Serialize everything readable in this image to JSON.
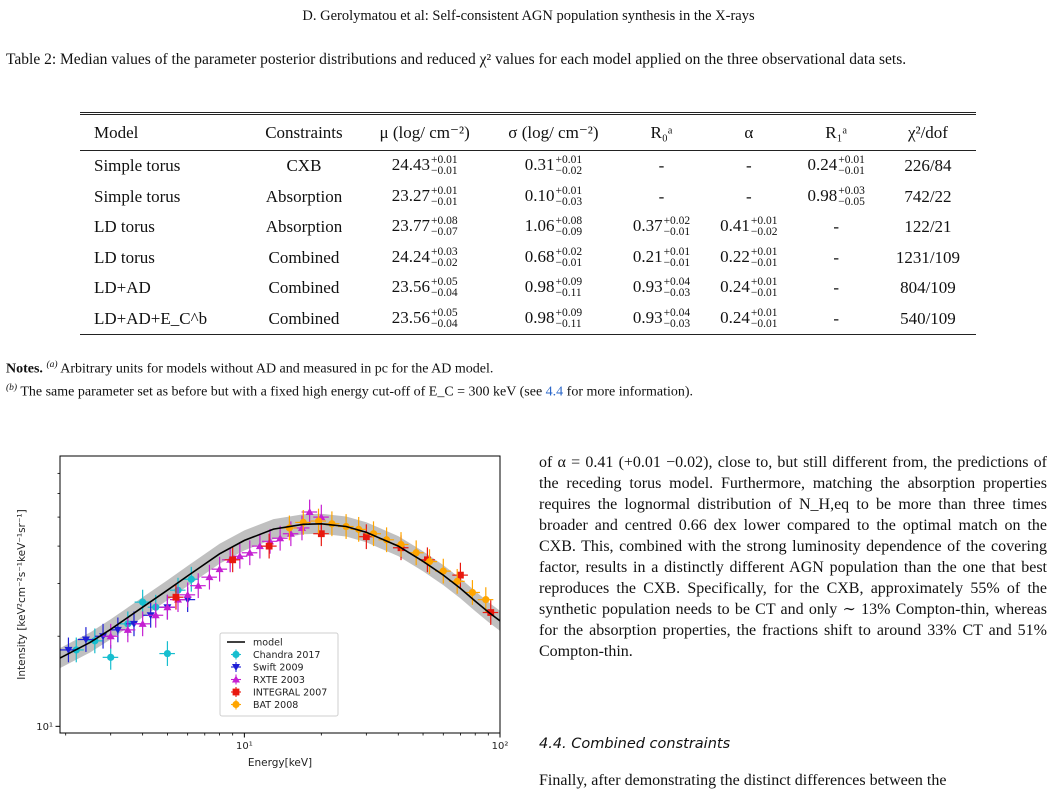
{
  "header": {
    "running_title": "D. Gerolymatou et al: Self-consistent AGN population synthesis in the X-rays"
  },
  "table": {
    "caption": "Table 2: Median values of the parameter posterior distributions and reduced χ² values for each model applied on the three observational data sets.",
    "columns": [
      "Model",
      "Constraints",
      "μ (log/ cm⁻²)",
      "σ (log/ cm⁻²)",
      "R₀ᵃ",
      "α",
      "R₁ᵃ",
      "χ²/dof"
    ],
    "rows": [
      {
        "model": "Simple torus",
        "constraints": "CXB",
        "mu": {
          "v": "24.43",
          "up": "+0.01",
          "lo": "−0.01"
        },
        "sigma": {
          "v": "0.31",
          "up": "+0.01",
          "lo": "−0.02"
        },
        "r0": {
          "v": "-",
          "up": "",
          "lo": ""
        },
        "alpha": {
          "v": "-",
          "up": "",
          "lo": ""
        },
        "r1": {
          "v": "0.24",
          "up": "+0.01",
          "lo": "−0.01"
        },
        "chi2": "226/84"
      },
      {
        "model": "Simple torus",
        "constraints": "Absorption",
        "mu": {
          "v": "23.27",
          "up": "+0.01",
          "lo": "−0.01"
        },
        "sigma": {
          "v": "0.10",
          "up": "+0.01",
          "lo": "−0.03"
        },
        "r0": {
          "v": "-",
          "up": "",
          "lo": ""
        },
        "alpha": {
          "v": "-",
          "up": "",
          "lo": ""
        },
        "r1": {
          "v": "0.98",
          "up": "+0.03",
          "lo": "−0.05"
        },
        "chi2": "742/22"
      },
      {
        "model": "LD torus",
        "constraints": "Absorption",
        "mu": {
          "v": "23.77",
          "up": "+0.08",
          "lo": "−0.07"
        },
        "sigma": {
          "v": "1.06",
          "up": "+0.08",
          "lo": "−0.09"
        },
        "r0": {
          "v": "0.37",
          "up": "+0.02",
          "lo": "−0.01"
        },
        "alpha": {
          "v": "0.41",
          "up": "+0.01",
          "lo": "−0.02"
        },
        "r1": {
          "v": "-",
          "up": "",
          "lo": ""
        },
        "chi2": "122/21"
      },
      {
        "model": "LD torus",
        "constraints": "Combined",
        "mu": {
          "v": "24.24",
          "up": "+0.03",
          "lo": "−0.02"
        },
        "sigma": {
          "v": "0.68",
          "up": "+0.02",
          "lo": "−0.01"
        },
        "r0": {
          "v": "0.21",
          "up": "+0.01",
          "lo": "−0.01"
        },
        "alpha": {
          "v": "0.22",
          "up": "+0.01",
          "lo": "−0.01"
        },
        "r1": {
          "v": "-",
          "up": "",
          "lo": ""
        },
        "chi2": "1231/109"
      },
      {
        "model": "LD+AD",
        "constraints": "Combined",
        "mu": {
          "v": "23.56",
          "up": "+0.05",
          "lo": "−0.04"
        },
        "sigma": {
          "v": "0.98",
          "up": "+0.09",
          "lo": "−0.11"
        },
        "r0": {
          "v": "0.93",
          "up": "+0.04",
          "lo": "−0.03"
        },
        "alpha": {
          "v": "0.24",
          "up": "+0.01",
          "lo": "−0.01"
        },
        "r1": {
          "v": "-",
          "up": "",
          "lo": ""
        },
        "chi2": "804/109"
      },
      {
        "model": "LD+AD+E_C^b",
        "constraints": "Combined",
        "mu": {
          "v": "23.56",
          "up": "+0.05",
          "lo": "−0.04"
        },
        "sigma": {
          "v": "0.98",
          "up": "+0.09",
          "lo": "−0.11"
        },
        "r0": {
          "v": "0.93",
          "up": "+0.04",
          "lo": "−0.03"
        },
        "alpha": {
          "v": "0.24",
          "up": "+0.01",
          "lo": "−0.01"
        },
        "r1": {
          "v": "-",
          "up": "",
          "lo": ""
        },
        "chi2": "540/109"
      }
    ]
  },
  "notes": {
    "label": "Notes.",
    "a_mark": "(a)",
    "a_text": "Arbitrary units for models without AD and measured in pc for the AD model.",
    "b_mark": "(b)",
    "b_text_1": "The same parameter set as before but with a fixed high energy cut-off of E_C = 300 keV (see",
    "b_link": "4.4",
    "b_text_2": "for more information)."
  },
  "body": {
    "paragraph": "of α = 0.41 (+0.01 −0.02), close to, but still different from, the predictions of the receding torus model. Furthermore, matching the absorption properties requires the lognormal distribution of N_H,eq to be more than three times broader and centred 0.66 dex lower compared to the optimal match on the CXB. This, combined with the strong luminosity dependence of the covering factor, results in a distinctly different AGN population than the one that best reproduces the CXB. Specifically, for the CXB, approximately 55% of the synthetic population needs to be CT and only ∼ 13% Compton-thin, whereas for the absorption properties, the fractions shift to around 33% CT and 51% Compton-thin.",
    "section_title": "4.4. Combined constraints",
    "paragraph_2": "Finally, after demonstrating the distinct differences between the"
  },
  "chart_data": {
    "type": "scatter",
    "title": "",
    "xlabel": "Energy[keV]",
    "ylabel": "Intensity [keV²cm⁻²s⁻¹keV⁻¹sr⁻¹]",
    "xscale": "log",
    "yscale": "log",
    "xlim": [
      1.9,
      100
    ],
    "ylim": [
      9.5,
      80
    ],
    "x_ticks": [
      {
        "value": 10,
        "label": "10¹"
      },
      {
        "value": 100,
        "label": "10²"
      }
    ],
    "y_ticks": [
      {
        "value": 10,
        "label": "10¹"
      }
    ],
    "legend_position": "lower center",
    "model": {
      "name": "model",
      "color": "#000000",
      "x": [
        1.9,
        2.5,
        3,
        4,
        5,
        6,
        8,
        10,
        13,
        17,
        20,
        25,
        30,
        40,
        50,
        60,
        70,
        80,
        90,
        100
      ],
      "y": [
        16.9,
        19.1,
        21.1,
        25.0,
        28.5,
        31.8,
        37.7,
        41.8,
        45.6,
        47.3,
        47.5,
        46.5,
        44.5,
        40.0,
        35.6,
        32.0,
        28.9,
        26.2,
        24.1,
        22.5
      ]
    },
    "series": [
      {
        "name": "Chandra 2017",
        "color": "#17becf",
        "marker": "circle",
        "x": [
          2.2,
          2.6,
          3.0,
          3.5,
          4.0,
          4.5,
          5.0,
          5.5,
          6.2
        ],
        "y": [
          18.0,
          19.3,
          17.0,
          22.0,
          26.0,
          25.0,
          17.5,
          28.5,
          31.0
        ]
      },
      {
        "name": "Swift 2009",
        "color": "#1f1fd6",
        "marker": "triangle-down",
        "x": [
          2.05,
          2.4,
          2.8,
          3.2,
          3.7,
          4.3,
          5.0,
          6.0
        ],
        "y": [
          18.0,
          19.5,
          20.0,
          21.0,
          22.0,
          23.5,
          25.0,
          26.5
        ]
      },
      {
        "name": "RXTE 2003",
        "color": "#c51fd2",
        "marker": "triangle-up",
        "x": [
          3.0,
          3.5,
          4.0,
          4.5,
          5.0,
          5.5,
          6.0,
          6.6,
          7.3,
          8.0,
          8.8,
          9.6,
          10.5,
          11.5,
          12.6,
          13.8,
          15.2,
          16.8,
          18.0,
          20.0
        ],
        "y": [
          20.0,
          21.0,
          22.0,
          23.5,
          25.0,
          26.5,
          27.5,
          29.5,
          31.5,
          33.5,
          36.0,
          37.0,
          38.0,
          40.0,
          41.5,
          42.5,
          44.0,
          46.0,
          52.0,
          50.0
        ]
      },
      {
        "name": "INTEGRAL 2007",
        "color": "#e8180f",
        "marker": "square",
        "x": [
          5.4,
          9.0,
          12.5,
          20.0,
          30.0,
          41.0,
          52.0,
          70.0,
          92.0
        ],
        "y": [
          27.0,
          36.0,
          40.0,
          44.0,
          43.0,
          39.5,
          36.0,
          32.0,
          24.0
        ]
      },
      {
        "name": "BAT 2008",
        "color": "#ffa500",
        "marker": "circle",
        "x": [
          15.0,
          17.0,
          19.5,
          22.0,
          25.0,
          28.0,
          32.0,
          36.0,
          41.0,
          47.0,
          53.0,
          60.0,
          68.0,
          78.0,
          88.0
        ],
        "y": [
          46.0,
          48.0,
          48.5,
          47.5,
          46.5,
          45.5,
          44.0,
          42.0,
          40.5,
          38.0,
          35.5,
          33.0,
          30.5,
          28.0,
          26.5
        ]
      }
    ]
  }
}
